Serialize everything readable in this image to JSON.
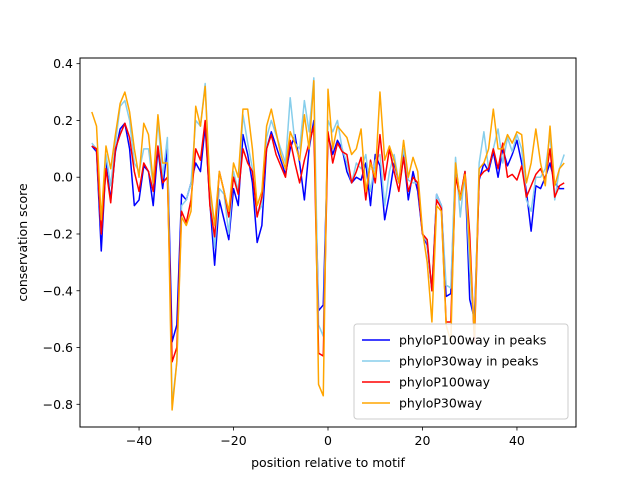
{
  "chart_data": {
    "type": "line",
    "title": "",
    "xlabel": "position relative to motif",
    "ylabel": "conservation score",
    "xlim": [
      -52.5,
      52.5
    ],
    "ylim": [
      -0.88,
      0.42
    ],
    "xticks": [
      -40,
      -20,
      0,
      20,
      40
    ],
    "xtick_labels": [
      "−40",
      "−20",
      "0",
      "20",
      "40"
    ],
    "yticks": [
      -0.8,
      -0.6,
      -0.4,
      -0.2,
      0.0,
      0.2,
      0.4
    ],
    "ytick_labels": [
      "−0.8",
      "−0.6",
      "−0.4",
      "−0.2",
      "0.0",
      "0.2",
      "0.4"
    ],
    "legend_position": "lower-right",
    "x": [
      -50,
      -49,
      -48,
      -47,
      -46,
      -45,
      -44,
      -43,
      -42,
      -41,
      -40,
      -39,
      -38,
      -37,
      -36,
      -35,
      -34,
      -33,
      -32,
      -31,
      -30,
      -29,
      -28,
      -27,
      -26,
      -25,
      -24,
      -23,
      -22,
      -21,
      -20,
      -19,
      -18,
      -17,
      -16,
      -15,
      -14,
      -13,
      -12,
      -11,
      -10,
      -9,
      -8,
      -7,
      -6,
      -5,
      -4,
      -3,
      -2,
      -1,
      0,
      1,
      2,
      3,
      4,
      5,
      6,
      7,
      8,
      9,
      10,
      11,
      12,
      13,
      14,
      15,
      16,
      17,
      18,
      19,
      20,
      21,
      22,
      23,
      24,
      25,
      26,
      27,
      28,
      29,
      30,
      31,
      32,
      33,
      34,
      35,
      36,
      37,
      38,
      39,
      40,
      41,
      42,
      43,
      44,
      45,
      46,
      47,
      48,
      49,
      50
    ],
    "series": [
      {
        "name": "phyloP100way in peaks",
        "color": "#0000ff",
        "values": [
          0.11,
          0.09,
          -0.26,
          0.05,
          -0.08,
          0.09,
          0.17,
          0.19,
          0.1,
          -0.1,
          -0.08,
          0.04,
          0.02,
          -0.1,
          0.1,
          -0.04,
          0.1,
          -0.58,
          -0.52,
          -0.06,
          -0.08,
          -0.02,
          0.05,
          0.02,
          0.18,
          -0.09,
          -0.31,
          -0.08,
          -0.15,
          -0.22,
          -0.04,
          -0.1,
          0.15,
          0.08,
          -0.02,
          -0.23,
          -0.17,
          0.1,
          0.16,
          0.11,
          0.06,
          0.01,
          0.1,
          0.15,
          0.05,
          -0.08,
          0.1,
          0.2,
          -0.47,
          -0.45,
          0.15,
          0.08,
          0.13,
          0.1,
          0.02,
          -0.02,
          0.0,
          -0.01,
          0.05,
          -0.1,
          0.08,
          0.04,
          -0.15,
          -0.06,
          0.05,
          -0.02,
          0.08,
          -0.08,
          0.02,
          -0.05,
          -0.2,
          -0.24,
          -0.4,
          -0.06,
          -0.1,
          -0.42,
          -0.41,
          0.04,
          -0.08,
          0.02,
          -0.43,
          -0.5,
          -0.01,
          0.05,
          0.02,
          0.09,
          0.0,
          0.1,
          0.04,
          0.08,
          0.13,
          0.05,
          -0.05,
          -0.19,
          -0.03,
          -0.04,
          0.0,
          0.05,
          -0.02,
          -0.04,
          -0.04
        ]
      },
      {
        "name": "phyloP30way in peaks",
        "color": "#87ceeb",
        "values": [
          0.12,
          0.1,
          -0.2,
          0.08,
          -0.03,
          0.12,
          0.25,
          0.27,
          0.2,
          0.05,
          0.02,
          0.1,
          0.1,
          -0.03,
          0.2,
          0.0,
          0.14,
          -0.8,
          -0.65,
          -0.1,
          -0.08,
          -0.02,
          0.2,
          0.18,
          0.33,
          -0.05,
          -0.25,
          -0.04,
          -0.06,
          -0.2,
          0.02,
          -0.05,
          0.22,
          0.12,
          0.03,
          -0.13,
          -0.1,
          0.14,
          0.2,
          0.15,
          0.1,
          0.05,
          0.28,
          0.12,
          0.1,
          0.27,
          0.16,
          0.35,
          -0.52,
          -0.56,
          0.2,
          0.16,
          0.2,
          0.1,
          0.05,
          -0.02,
          0.05,
          0.03,
          0.08,
          -0.05,
          0.06,
          0.08,
          -0.1,
          0.02,
          0.08,
          -0.02,
          0.1,
          -0.01,
          -0.02,
          -0.02,
          -0.2,
          -0.23,
          -0.4,
          -0.06,
          -0.1,
          -0.38,
          -0.39,
          0.07,
          -0.14,
          0.02,
          -0.32,
          -0.55,
          0.05,
          0.16,
          0.03,
          0.1,
          0.17,
          0.05,
          0.14,
          0.09,
          0.15,
          0.1,
          -0.08,
          -0.12,
          0.0,
          0.0,
          0.03,
          0.15,
          -0.08,
          0.03,
          0.08
        ]
      },
      {
        "name": "phyloP100way",
        "color": "#ff0000",
        "values": [
          0.11,
          0.1,
          -0.2,
          0.03,
          -0.09,
          0.1,
          0.15,
          0.19,
          0.14,
          0.02,
          -0.05,
          0.05,
          0.02,
          -0.05,
          0.11,
          -0.02,
          0.0,
          -0.65,
          -0.6,
          -0.12,
          -0.16,
          -0.08,
          0.1,
          0.06,
          0.2,
          -0.1,
          -0.21,
          0.02,
          -0.05,
          -0.14,
          0.0,
          -0.06,
          0.1,
          0.05,
          0.02,
          -0.14,
          -0.07,
          0.1,
          0.15,
          0.08,
          0.04,
          0.0,
          0.13,
          0.05,
          -0.02,
          0.06,
          0.12,
          0.18,
          -0.62,
          -0.63,
          0.16,
          0.05,
          0.12,
          0.09,
          0.08,
          -0.02,
          0.02,
          0.07,
          -0.08,
          0.06,
          -0.02,
          0.15,
          -0.01,
          0.1,
          0.02,
          -0.05,
          0.07,
          -0.05,
          0.0,
          -0.02,
          -0.2,
          -0.22,
          -0.4,
          -0.08,
          -0.11,
          -0.51,
          -0.51,
          0.0,
          -0.07,
          0.02,
          -0.2,
          -0.58,
          0.0,
          0.02,
          0.03,
          0.1,
          0.03,
          0.12,
          0.0,
          0.01,
          -0.01,
          0.04,
          -0.07,
          -0.03,
          0.01,
          0.03,
          -0.01,
          0.1,
          -0.07,
          -0.03,
          -0.02
        ]
      },
      {
        "name": "phyloP30way",
        "color": "#ffa500",
        "values": [
          0.23,
          0.18,
          -0.15,
          0.11,
          0.03,
          0.15,
          0.26,
          0.3,
          0.23,
          0.1,
          0.0,
          0.19,
          0.15,
          -0.02,
          0.22,
          0.05,
          0.05,
          -0.82,
          -0.65,
          -0.14,
          -0.17,
          -0.12,
          0.25,
          0.18,
          0.32,
          -0.03,
          -0.17,
          0.02,
          -0.05,
          -0.12,
          0.05,
          0.0,
          0.24,
          0.24,
          0.1,
          -0.1,
          -0.05,
          0.18,
          0.24,
          0.16,
          0.08,
          0.03,
          0.16,
          0.12,
          0.06,
          0.22,
          0.1,
          0.34,
          -0.73,
          -0.77,
          0.31,
          0.1,
          0.18,
          0.16,
          0.14,
          0.08,
          0.1,
          0.17,
          -0.05,
          0.05,
          0.0,
          0.3,
          0.06,
          0.11,
          0.06,
          -0.02,
          0.13,
          0.0,
          0.07,
          0.02,
          -0.19,
          -0.3,
          -0.51,
          -0.1,
          -0.12,
          -0.52,
          -0.58,
          0.05,
          -0.08,
          0.01,
          -0.25,
          -0.56,
          0.03,
          0.05,
          0.1,
          0.24,
          0.1,
          0.1,
          0.15,
          0.12,
          0.16,
          0.15,
          -0.02,
          0.05,
          0.17,
          0.05,
          -0.03,
          0.18,
          -0.03,
          0.03,
          0.05
        ]
      }
    ]
  }
}
